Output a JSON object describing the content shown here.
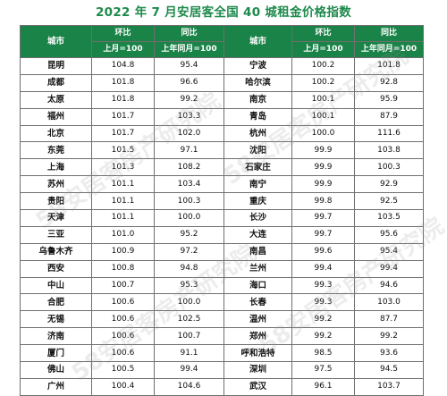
{
  "title": "2022 年 7 月安居客全国 40 城租金价格指数",
  "headers": {
    "city": "城市",
    "mom": "环比",
    "mom_sub": "上月=100",
    "yoy": "同比",
    "yoy_sub": "上年同月=100"
  },
  "watermark": "58安居客房产研究院",
  "rows": [
    {
      "c1": "昆明",
      "m1": "104.8",
      "y1": "95.4",
      "c2": "宁波",
      "m2": "100.2",
      "y2": "101.8"
    },
    {
      "c1": "成都",
      "m1": "101.8",
      "y1": "96.6",
      "c2": "哈尔滨",
      "m2": "100.2",
      "y2": "92.8"
    },
    {
      "c1": "太原",
      "m1": "101.8",
      "y1": "99.2",
      "c2": "南京",
      "m2": "100.1",
      "y2": "95.9"
    },
    {
      "c1": "福州",
      "m1": "101.7",
      "y1": "103.3",
      "c2": "青岛",
      "m2": "100.1",
      "y2": "87.9"
    },
    {
      "c1": "北京",
      "m1": "101.7",
      "y1": "102.0",
      "c2": "杭州",
      "m2": "100.0",
      "y2": "111.6"
    },
    {
      "c1": "东莞",
      "m1": "101.5",
      "y1": "97.1",
      "c2": "沈阳",
      "m2": "99.9",
      "y2": "103.8"
    },
    {
      "c1": "上海",
      "m1": "101.3",
      "y1": "108.2",
      "c2": "石家庄",
      "m2": "99.9",
      "y2": "100.3"
    },
    {
      "c1": "苏州",
      "m1": "101.1",
      "y1": "103.4",
      "c2": "南宁",
      "m2": "99.9",
      "y2": "92.9"
    },
    {
      "c1": "贵阳",
      "m1": "101.1",
      "y1": "100.3",
      "c2": "重庆",
      "m2": "99.8",
      "y2": "92.5"
    },
    {
      "c1": "天津",
      "m1": "101.1",
      "y1": "100.0",
      "c2": "长沙",
      "m2": "99.7",
      "y2": "103.5"
    },
    {
      "c1": "三亚",
      "m1": "101.0",
      "y1": "95.2",
      "c2": "大连",
      "m2": "99.7",
      "y2": "95.6"
    },
    {
      "c1": "乌鲁木齐",
      "m1": "100.9",
      "y1": "97.2",
      "c2": "南昌",
      "m2": "99.6",
      "y2": "95.4"
    },
    {
      "c1": "西安",
      "m1": "100.8",
      "y1": "94.8",
      "c2": "兰州",
      "m2": "99.4",
      "y2": "99.4"
    },
    {
      "c1": "中山",
      "m1": "100.7",
      "y1": "95.3",
      "c2": "海口",
      "m2": "99.3",
      "y2": "94.6"
    },
    {
      "c1": "合肥",
      "m1": "100.6",
      "y1": "100.0",
      "c2": "长春",
      "m2": "99.3",
      "y2": "103.0"
    },
    {
      "c1": "无锡",
      "m1": "100.6",
      "y1": "102.5",
      "c2": "温州",
      "m2": "99.2",
      "y2": "87.7"
    },
    {
      "c1": "济南",
      "m1": "100.6",
      "y1": "100.7",
      "c2": "郑州",
      "m2": "99.2",
      "y2": "99.2"
    },
    {
      "c1": "厦门",
      "m1": "100.6",
      "y1": "91.1",
      "c2": "呼和浩特",
      "m2": "98.5",
      "y2": "93.6"
    },
    {
      "c1": "佛山",
      "m1": "100.5",
      "y1": "99.4",
      "c2": "深圳",
      "m2": "97.5",
      "y2": "94.5"
    },
    {
      "c1": "广州",
      "m1": "100.4",
      "y1": "104.6",
      "c2": "武汉",
      "m2": "96.1",
      "y2": "103.7"
    }
  ]
}
